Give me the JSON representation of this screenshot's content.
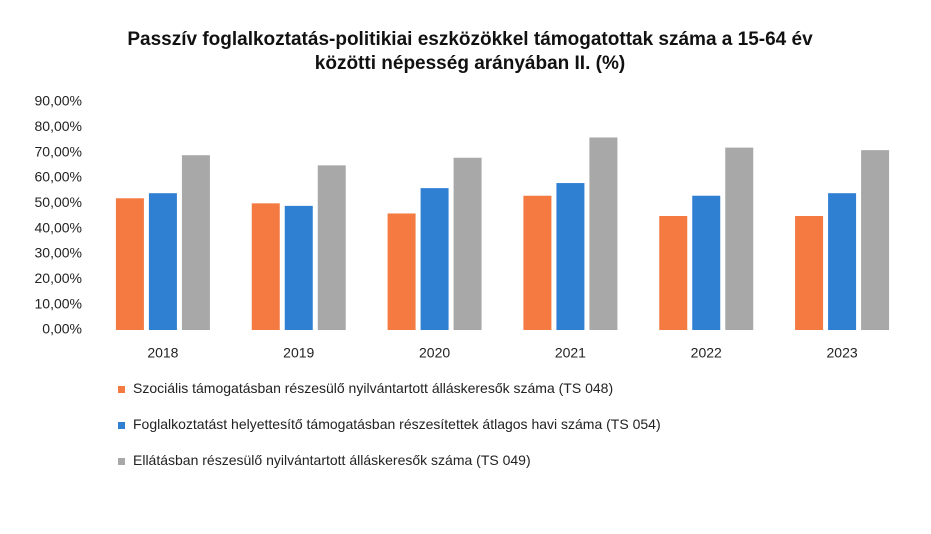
{
  "chart_data": {
    "type": "bar",
    "title": "Passzív foglalkoztatás-politikiai eszközökkel támogatottak száma a 15-64 év közötti népesség arányában II. (%)",
    "categories": [
      "2018",
      "2019",
      "2020",
      "2021",
      "2022",
      "2023"
    ],
    "series": [
      {
        "name": "Szociális támogatásban részesülő nyilvántartott álláskeresők száma (TS 048)",
        "color": "#f47a42",
        "values": [
          52,
          50,
          46,
          53,
          45,
          45
        ]
      },
      {
        "name": "Foglalkoztatást helyettesítő támogatásban részesítettek átlagos havi száma (TS 054)",
        "color": "#2f7fd3",
        "values": [
          54,
          49,
          56,
          58,
          53,
          54
        ]
      },
      {
        "name": "Ellátásban részesülő nyilvántartott álláskeresők száma (TS 049)",
        "color": "#a8a8a8",
        "values": [
          69,
          65,
          68,
          76,
          72,
          71
        ]
      }
    ],
    "ylim": [
      0,
      90
    ],
    "yticks": [
      {
        "value": 0,
        "label": "0,00%"
      },
      {
        "value": 10,
        "label": "10,00%"
      },
      {
        "value": 20,
        "label": "20,00%"
      },
      {
        "value": 30,
        "label": "30,00%"
      },
      {
        "value": 40,
        "label": "40,00%"
      },
      {
        "value": 50,
        "label": "50,00%"
      },
      {
        "value": 60,
        "label": "60,00%"
      },
      {
        "value": 70,
        "label": "70,00%"
      },
      {
        "value": 80,
        "label": "80,00%"
      },
      {
        "value": 90,
        "label": "90,00%"
      }
    ],
    "grid": false,
    "legend": "bottom"
  }
}
